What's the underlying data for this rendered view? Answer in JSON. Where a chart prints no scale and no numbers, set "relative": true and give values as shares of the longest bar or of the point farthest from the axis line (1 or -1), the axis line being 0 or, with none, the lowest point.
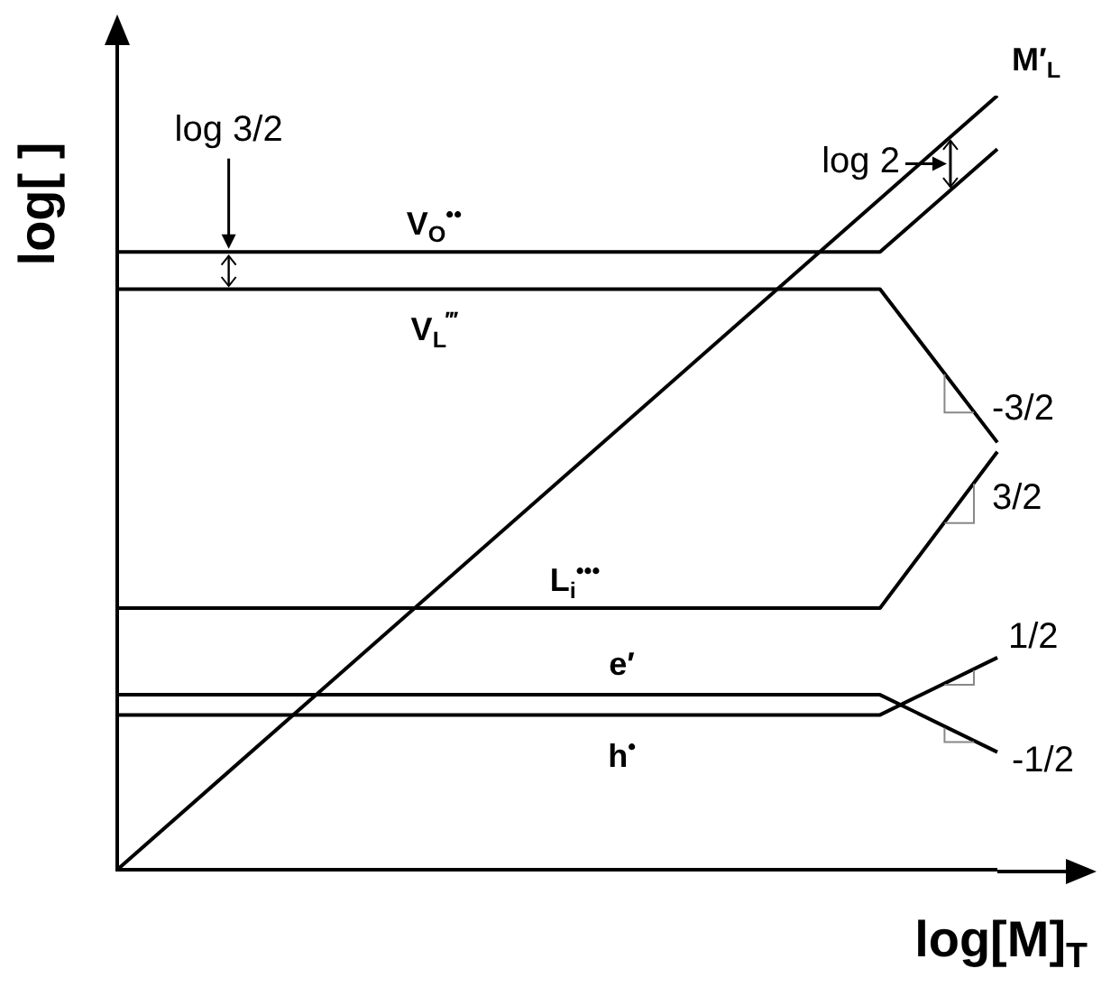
{
  "chart_data": {
    "type": "line",
    "relative": true,
    "xlabel": "log[M]$_{T}$",
    "ylabel": "log[ ]",
    "categories": [
      null,
      null,
      null,
      null,
      null,
      null,
      null,
      null,
      null,
      null,
      null,
      null,
      null,
      null,
      null,
      null
    ],
    "series": [
      {
        "name": "M′$_{L}$",
        "color": "#000000",
        "values": [
          0,
          null,
          null,
          null,
          null,
          null,
          null,
          null,
          null,
          null,
          null,
          null,
          null,
          null,
          null,
          1
        ]
      },
      {
        "name": "V$_{O}$$^{••}$",
        "color": "#000000",
        "values": [
          0.798,
          null,
          null,
          null,
          null,
          null,
          null,
          null,
          null,
          null,
          null,
          null,
          null,
          0.798,
          null,
          0.931
        ]
      },
      {
        "name": "V$_{L}$$^{‴}$",
        "color": "#000000",
        "values": [
          0.75,
          null,
          null,
          null,
          null,
          null,
          null,
          null,
          null,
          null,
          null,
          null,
          null,
          0.75,
          null,
          0.552
        ]
      },
      {
        "name": "L$_{i}$$^{•••}$",
        "color": "#000000",
        "values": [
          0.338,
          null,
          null,
          null,
          null,
          null,
          null,
          null,
          null,
          null,
          null,
          null,
          null,
          0.338,
          null,
          0.54
        ]
      },
      {
        "name": "e′",
        "color": "#000000",
        "values": [
          0.226,
          null,
          null,
          null,
          null,
          null,
          null,
          null,
          null,
          null,
          null,
          null,
          null,
          0.226,
          null,
          0.152
        ]
      },
      {
        "name": "h$^{•}$",
        "color": "#000000",
        "values": [
          0.2,
          null,
          null,
          null,
          null,
          null,
          null,
          null,
          null,
          null,
          null,
          null,
          null,
          0.2,
          null,
          0.274
        ]
      }
    ],
    "annotations": [
      "log 3/2",
      "log 2",
      "-3/2",
      "3/2",
      "1/2",
      "-1/2"
    ]
  }
}
